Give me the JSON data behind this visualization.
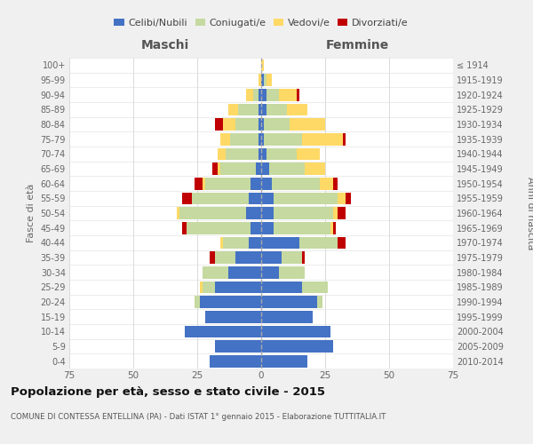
{
  "age_groups": [
    "0-4",
    "5-9",
    "10-14",
    "15-19",
    "20-24",
    "25-29",
    "30-34",
    "35-39",
    "40-44",
    "45-49",
    "50-54",
    "55-59",
    "60-64",
    "65-69",
    "70-74",
    "75-79",
    "80-84",
    "85-89",
    "90-94",
    "95-99",
    "100+"
  ],
  "birth_years": [
    "2010-2014",
    "2005-2009",
    "2000-2004",
    "1995-1999",
    "1990-1994",
    "1985-1989",
    "1980-1984",
    "1975-1979",
    "1970-1974",
    "1965-1969",
    "1960-1964",
    "1955-1959",
    "1950-1954",
    "1945-1949",
    "1940-1944",
    "1935-1939",
    "1930-1934",
    "1925-1929",
    "1920-1924",
    "1915-1919",
    "≤ 1914"
  ],
  "colors": {
    "celibi": "#4472C4",
    "coniugati": "#c5d9a0",
    "vedovi": "#FFD966",
    "divorziati": "#C00000"
  },
  "maschi": {
    "celibi": [
      20,
      18,
      30,
      22,
      24,
      18,
      13,
      10,
      5,
      4,
      6,
      5,
      4,
      2,
      1,
      1,
      1,
      1,
      1,
      0,
      0
    ],
    "coniugati": [
      0,
      0,
      0,
      0,
      2,
      5,
      10,
      8,
      10,
      25,
      26,
      22,
      18,
      14,
      13,
      11,
      9,
      8,
      2,
      0,
      0
    ],
    "vedovi": [
      0,
      0,
      0,
      0,
      0,
      1,
      0,
      0,
      1,
      0,
      1,
      0,
      1,
      1,
      3,
      4,
      5,
      4,
      3,
      1,
      0
    ],
    "divorziati": [
      0,
      0,
      0,
      0,
      0,
      0,
      0,
      2,
      0,
      2,
      0,
      4,
      3,
      2,
      0,
      0,
      3,
      0,
      0,
      0,
      0
    ]
  },
  "femmine": {
    "celibi": [
      18,
      28,
      27,
      20,
      22,
      16,
      7,
      8,
      15,
      5,
      5,
      5,
      4,
      3,
      2,
      1,
      1,
      2,
      2,
      1,
      0
    ],
    "coniugati": [
      0,
      0,
      0,
      0,
      2,
      10,
      10,
      8,
      15,
      22,
      23,
      25,
      19,
      14,
      12,
      15,
      10,
      8,
      5,
      1,
      0
    ],
    "vedovi": [
      0,
      0,
      0,
      0,
      0,
      0,
      0,
      0,
      0,
      1,
      2,
      3,
      5,
      8,
      9,
      16,
      14,
      8,
      7,
      2,
      1
    ],
    "divorziati": [
      0,
      0,
      0,
      0,
      0,
      0,
      0,
      1,
      3,
      1,
      3,
      2,
      2,
      0,
      0,
      1,
      0,
      0,
      1,
      0,
      0
    ]
  },
  "xlim": 75,
  "title": "Popolazione per età, sesso e stato civile - 2015",
  "subtitle": "COMUNE DI CONTESSA ENTELLINA (PA) - Dati ISTAT 1° gennaio 2015 - Elaborazione TUTTITALIA.IT",
  "ylabel_left": "Fasce di età",
  "ylabel_right": "Anni di nascita",
  "xlabel_left": "Maschi",
  "xlabel_right": "Femmine",
  "bg_color": "#f0f0f0",
  "plot_bg_color": "#ffffff"
}
